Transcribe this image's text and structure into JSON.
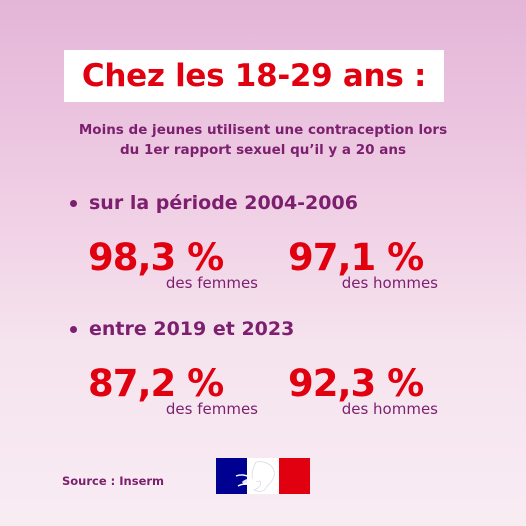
{
  "title": "Chez les 18-29 ans :",
  "subtitle_line1": "Moins de jeunes utilisent une contraception lors",
  "subtitle_line2": "du 1er rapport sexuel qu’il y a 20 ans",
  "periods": [
    {
      "label": "sur la période 2004-2006",
      "women": {
        "value": "98,3 %",
        "label": "des femmes"
      },
      "men": {
        "value": "97,1 %",
        "label": "des hommes"
      }
    },
    {
      "label": "entre 2019 et 2023",
      "women": {
        "value": "87,2 %",
        "label": "des femmes"
      },
      "men": {
        "value": "92,3 %",
        "label": "des hommes"
      }
    }
  ],
  "source": "Source : Inserm",
  "logo": {
    "icon": "marianne-flag-logo",
    "colors": [
      "#000091",
      "#ffffff",
      "#e1000f"
    ]
  },
  "colors": {
    "accent_red": "#e1000f",
    "text_purple": "#7b1f6e",
    "title_box": "#ffffff"
  }
}
